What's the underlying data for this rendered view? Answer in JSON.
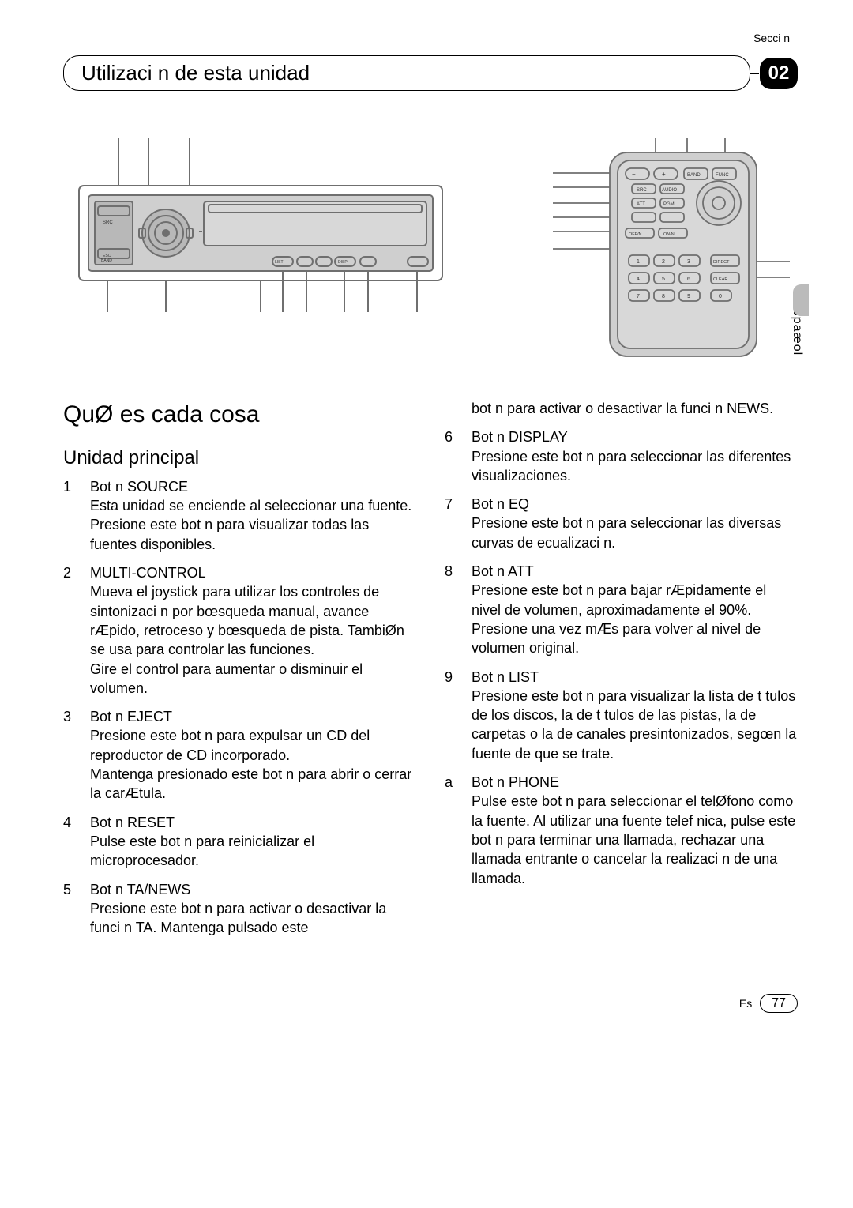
{
  "section_label": "Secci n",
  "header_title": "Utilizaci n de esta unidad",
  "badge": "02",
  "side_tab": "Espaæol",
  "big_heading": "QuØ es cada cosa",
  "sub_heading": "Unidad principal",
  "left_items": [
    {
      "n": "1",
      "t": "Bot n SOURCE",
      "d": "Esta unidad se enciende al seleccionar una fuente. Presione este bot n para visualizar todas las fuentes disponibles."
    },
    {
      "n": "2",
      "t": "MULTI-CONTROL",
      "d": "Mueva el joystick para utilizar los controles de sintonizaci n por bœsqueda manual, avance rÆpido, retroceso y bœsqueda de pista. TambiØn se usa para controlar las funciones.\nGire el control para aumentar o disminuir el volumen."
    },
    {
      "n": "3",
      "t": "Bot n EJECT",
      "d": "Presione este bot n para expulsar un CD del reproductor de CD incorporado.\nMantenga presionado este bot n para abrir o cerrar la carÆtula."
    },
    {
      "n": "4",
      "t": "Bot n RESET",
      "d": "Pulse este bot n para reinicializar el microprocesador."
    },
    {
      "n": "5",
      "t": "Bot n TA/NEWS",
      "d": "Presione este bot n para activar o desactivar la funci n TA. Mantenga pulsado este"
    }
  ],
  "right_intro": "bot n para activar o desactivar la funci n NEWS.",
  "right_items": [
    {
      "n": "6",
      "t": "Bot n DISPLAY",
      "d": "Presione este bot n para seleccionar las diferentes visualizaciones."
    },
    {
      "n": "7",
      "t": "Bot n EQ",
      "d": "Presione este bot n para seleccionar las diversas curvas de ecualizaci n."
    },
    {
      "n": "8",
      "t": "Bot n ATT",
      "d": "Presione este bot n para bajar rÆpidamente el nivel de volumen, aproximadamente el 90%. Presione una vez mÆs para volver al nivel de volumen original."
    },
    {
      "n": "9",
      "t": "Bot n LIST",
      "d": "Presione este bot n para visualizar la lista de t tulos de los discos, la de t tulos de las pistas, la de carpetas o la de canales presintonizados, segœn la fuente de que se trate."
    },
    {
      "n": "a",
      "t": "Bot n PHONE",
      "d": "Pulse este bot n para seleccionar el telØfono como la fuente. Al utilizar una fuente telef nica, pulse este bot n para terminar una llamada, rechazar una llamada entrante o cancelar la realizaci n de una llamada."
    }
  ],
  "footer_lang": "Es",
  "footer_page": "77",
  "remote_labels": {
    "band": "BAND",
    "func": "FUNC",
    "src": "SRC",
    "audio": "AUDIO",
    "att": "ATT",
    "pgm": "PGM",
    "offn": "OFF/N",
    "onn": "ON/N",
    "direct": "DIRECT",
    "clear": "CLEAR"
  },
  "colors": {
    "stroke": "#6f6f6f",
    "fill_light": "#cfcfcf",
    "knob": "#b8b8b8",
    "text": "#000000",
    "bg": "#ffffff"
  }
}
